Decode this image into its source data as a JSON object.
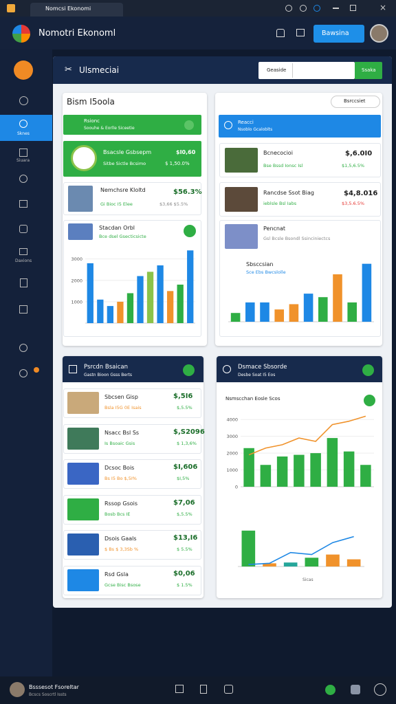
{
  "window": {
    "tab": "Nomcsi Ekonomi"
  },
  "header": {
    "app_name": "Nomotri Ekonoml",
    "button": "Bawsina"
  },
  "sidebar": {
    "active": "Sknes",
    "labels": [
      "Siuara",
      "Daxions"
    ]
  },
  "panel": {
    "title": "Ulsmeciai",
    "search_label": "Geaside",
    "search_button": "Ssaka"
  },
  "left_card": {
    "title": "Bism I5oola",
    "banner": {
      "title": "Rsionc",
      "subtitle": "Soouhe & Eorlle Siceetie"
    },
    "items": [
      {
        "title": "Bsacsle Gsbsepm",
        "sub": "Sitbe Sictle Bcsimo",
        "value": "$I0,60",
        "change": "$ 1,50.0%"
      },
      {
        "title": "Nemchsre Kloltd",
        "sub": "Gi Bioc I5 Elee",
        "value": "$56.3%",
        "change": "$3,66 $5.5%"
      }
    ],
    "chart_title": "Stacdan Orbl",
    "chart_subtitle": "Bce dsel Gsecticsicte",
    "chart": {
      "type": "bar",
      "ylim": [
        0,
        3600
      ],
      "yticks": [
        1000,
        2000,
        3000
      ],
      "categories": [
        null,
        null,
        null,
        null,
        null,
        null,
        null,
        null,
        null,
        null,
        null
      ],
      "values": [
        2800,
        1100,
        800,
        1000,
        1400,
        2200,
        2400,
        2700,
        1500,
        1800,
        3400
      ],
      "colors": [
        "#1e88e5",
        "#1e88e5",
        "#1e88e5",
        "#f0922b",
        "#2fae44",
        "#1e88e5",
        "#8bc34a",
        "#1e88e5",
        "#f0922b",
        "#2fae44",
        "#1e88e5"
      ]
    }
  },
  "right_card": {
    "dropdown": "Bsrccsiet",
    "banner": {
      "title": "Reacci",
      "subtitle": "Nsoblo Gcaloblts"
    },
    "items": [
      {
        "title": "Bcnecocioi",
        "sub": "Bse Bssd Ionsc Isl",
        "value": "$,6.0I0",
        "change": "$1,5,6.5%"
      },
      {
        "title": "Rancdse Ssot Biag",
        "sub": "ieblsle Bsl Iabs",
        "value": "$4,8.016",
        "change": "$3,5.6.5%"
      }
    ],
    "chart_title": "Pencnat",
    "chart_subtitle": "Gsl Bcsle Bsondl Ssinciniectcs",
    "chart_label": "Sbsccsian",
    "chart_sublabel": "Sce Ebs Bwcslolle",
    "chart": {
      "type": "bar",
      "ylim": [
        0,
        3600
      ],
      "categories": [
        null,
        null,
        null,
        null,
        null,
        null,
        null,
        null,
        null,
        null
      ],
      "values": [
        500,
        1100,
        1100,
        700,
        1000,
        1600,
        1400,
        2700,
        1100,
        3300
      ],
      "colors": [
        "#2fae44",
        "#1e88e5",
        "#1e88e5",
        "#f0922b",
        "#f0922b",
        "#1e88e5",
        "#2fae44",
        "#f0922b",
        "#2fae44",
        "#1e88e5"
      ]
    }
  },
  "bottom_left": {
    "title": "Psrcdn Bsaican",
    "subtitle": "Gastn Bioon Gsss Berts",
    "items": [
      {
        "title": "Sbcsen Gisp",
        "sub": "Bsla I5G 0E Isais",
        "value": "$,5I6",
        "change": "$,5.5%"
      },
      {
        "title": "Nsacc Bsl Ss",
        "sub": "Is Bsoaic Gsis",
        "value": "$,S2096",
        "change": "$ 1,3,6%"
      },
      {
        "title": "Dcsoc Bois",
        "sub": "Bs I5 Bo $,5I%",
        "value": "$I,606",
        "change": "$I,5%"
      },
      {
        "title": "Rssop Gsois",
        "sub": "Bosb Bcs IE",
        "value": "$7,06",
        "change": "$,5.5%"
      },
      {
        "title": "Dsois Gaals",
        "sub": "$ Bs $ 3,3Sb %",
        "value": "$13,I6",
        "change": "$ 5.5%"
      },
      {
        "title": "Rsd Gsla",
        "sub": "Gcse Bisc Bsose",
        "value": "$0,06",
        "change": "$ 1.5%"
      }
    ]
  },
  "bottom_right": {
    "title": "Dsmace Sbsorde",
    "subtitle": "Desbe Soat I5 Eos",
    "chart_label": "Nsmscchan Eosle Scos",
    "chart2_label": "Sicas",
    "chart": {
      "type": "bar_line",
      "ylim": [
        0,
        4500
      ],
      "yticks": [
        0,
        1000,
        2000,
        3000,
        4000
      ],
      "categories": [
        null,
        null,
        null,
        null,
        null,
        null,
        null,
        null
      ],
      "series": [
        {
          "type": "bar",
          "color": "#2fae44",
          "values": [
            2300,
            1300,
            1800,
            1900,
            2000,
            2900,
            2100,
            1300
          ]
        },
        {
          "type": "line",
          "color": "#f0922b",
          "values": [
            1900,
            2300,
            2500,
            2900,
            2700,
            3700,
            3900,
            4200
          ]
        }
      ]
    },
    "chart2": {
      "type": "bar_line",
      "ylim": [
        0,
        100
      ],
      "categories": [
        null,
        null,
        null,
        null,
        null,
        null
      ],
      "series": [
        {
          "type": "bar",
          "colors": [
            "#2fae44",
            "#f0922b",
            "#26a69a",
            "#2fae44",
            "#f0922b",
            "#f0922b"
          ],
          "values": [
            90,
            8,
            10,
            22,
            30,
            18
          ]
        },
        {
          "type": "line",
          "color": "#1e88e5",
          "values": [
            5,
            8,
            35,
            30,
            60,
            75
          ]
        }
      ]
    }
  },
  "footer": {
    "user": "Bsssesot Fsoreltar",
    "sub": "Bcscs Soscrtl Issts"
  }
}
